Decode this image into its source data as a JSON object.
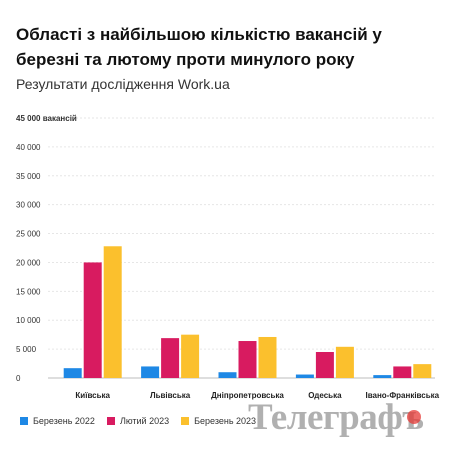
{
  "header": {
    "title": "Області з найбільшою кількістю вакансій у березні та лютому проти минулого року",
    "subtitle": "Результати дослідження Work.ua"
  },
  "watermark": {
    "text": "Телеграфъ"
  },
  "chart_data": {
    "type": "bar",
    "categories": [
      "Київська",
      "Львівська",
      "Дніпропетровська",
      "Одеська",
      "Івано-Франківська"
    ],
    "series": [
      {
        "name": "Березень 2022",
        "color": "#1e88e5",
        "values": [
          1700,
          2000,
          1000,
          600,
          500
        ]
      },
      {
        "name": "Лютий 2023",
        "color": "#d81b60",
        "values": [
          20000,
          6900,
          6400,
          4500,
          2000
        ]
      },
      {
        "name": "Березень 2023",
        "color": "#fbc02d",
        "values": [
          22800,
          7500,
          7100,
          5400,
          2400
        ]
      }
    ],
    "ylim": [
      0,
      45000
    ],
    "yticks": [
      0,
      5000,
      10000,
      15000,
      20000,
      25000,
      30000,
      35000,
      40000,
      45000
    ],
    "ytick_labels": [
      "0",
      "5 000",
      "10 000",
      "15 000",
      "20 000",
      "25 000",
      "30 000",
      "35 000",
      "40 000",
      "45 000 вакансій"
    ],
    "grid": true,
    "legend_position": "bottom-left"
  }
}
